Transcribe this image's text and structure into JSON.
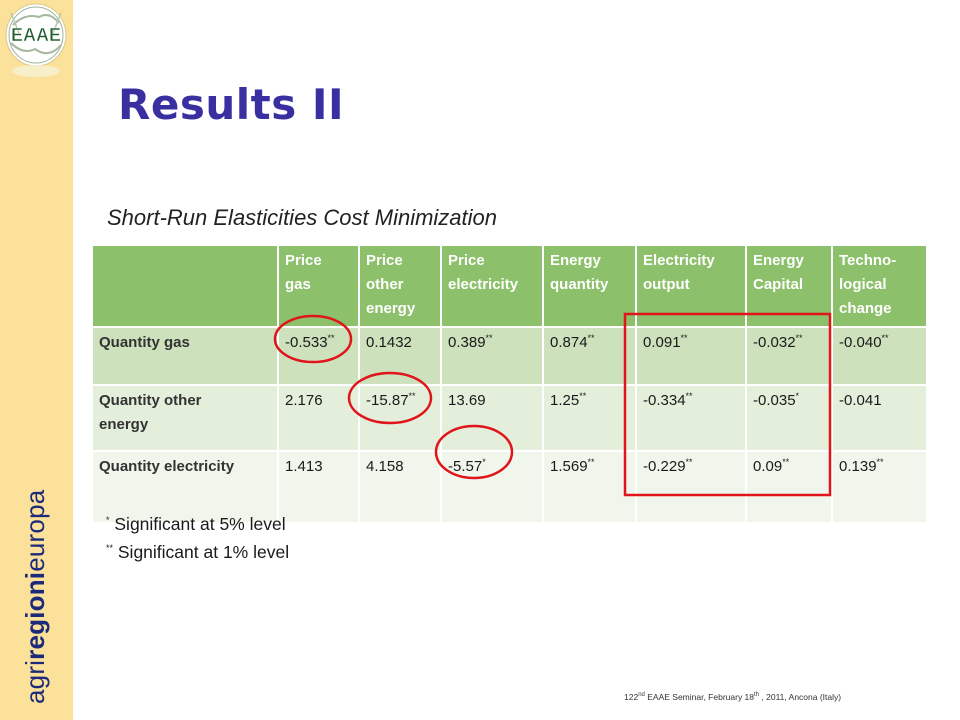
{
  "logo": {
    "text": "EAAE"
  },
  "sidebar": {
    "text_agri": "agri",
    "text_regioni": "regioni",
    "text_europa": "europa"
  },
  "slide": {
    "title": "Results II",
    "subtitle": "Short-Run Elasticities Cost Minimization"
  },
  "table": {
    "columns": [
      {
        "line1": "",
        "line2": "",
        "line3": ""
      },
      {
        "line1": "Price",
        "line2": "gas",
        "line3": ""
      },
      {
        "line1": "Price",
        "line2": "other",
        "line3": "energy"
      },
      {
        "line1": "Price",
        "line2": "electricity",
        "line3": ""
      },
      {
        "line1": "Energy",
        "line2": "quantity",
        "line3": ""
      },
      {
        "line1": "Electricity",
        "line2": "output",
        "line3": ""
      },
      {
        "line1": "Energy",
        "line2": "Capital",
        "line3": ""
      },
      {
        "line1": "Techno-",
        "line2": "logical",
        "line3": "change"
      }
    ],
    "rows": [
      {
        "label_line1": "Quantity gas",
        "label_line2": "",
        "cells": [
          {
            "v": "-0.533",
            "s": "**"
          },
          {
            "v": "0.1432",
            "s": ""
          },
          {
            "v": "0.389",
            "s": "**"
          },
          {
            "v": "0.874",
            "s": "**"
          },
          {
            "v": "0.091",
            "s": "**"
          },
          {
            "v": "-0.032",
            "s": "**"
          },
          {
            "v": "-0.040",
            "s": "**"
          }
        ]
      },
      {
        "label_line1": "Quantity other",
        "label_line2": "energy",
        "cells": [
          {
            "v": "2.176",
            "s": ""
          },
          {
            "v": "-15.87",
            "s": "**"
          },
          {
            "v": "13.69",
            "s": ""
          },
          {
            "v": "1.25",
            "s": "**"
          },
          {
            "v": "-0.334",
            "s": "**"
          },
          {
            "v": "-0.035",
            "s": "*"
          },
          {
            "v": "-0.041",
            "s": ""
          }
        ]
      },
      {
        "label_line1": "Quantity electricity",
        "label_line2": "",
        "cells": [
          {
            "v": "1.413",
            "s": ""
          },
          {
            "v": "4.158",
            "s": ""
          },
          {
            "v": "-5.57",
            "s": "*"
          },
          {
            "v": "1.569",
            "s": "**"
          },
          {
            "v": "-0.229",
            "s": "**"
          },
          {
            "v": "0.09",
            "s": "**"
          },
          {
            "v": "0.139",
            "s": "**"
          }
        ]
      }
    ]
  },
  "notes": {
    "n1_mark": "*",
    "n1_text": " Significant at 5% level",
    "n2_mark": "**",
    "n2_text": " Significant at 1% level"
  },
  "footer": {
    "pre": "122",
    "pre_sup": "nd",
    "mid": " EAAE Seminar, February 18",
    "mid_sup": "th",
    "post": " , 2011, Ancona (Italy)"
  },
  "colors": {
    "sidebar": "#fbe19a",
    "title": "#3a2fa0",
    "header_green": "#8cc06a",
    "highlight_red": "#e0141a"
  }
}
